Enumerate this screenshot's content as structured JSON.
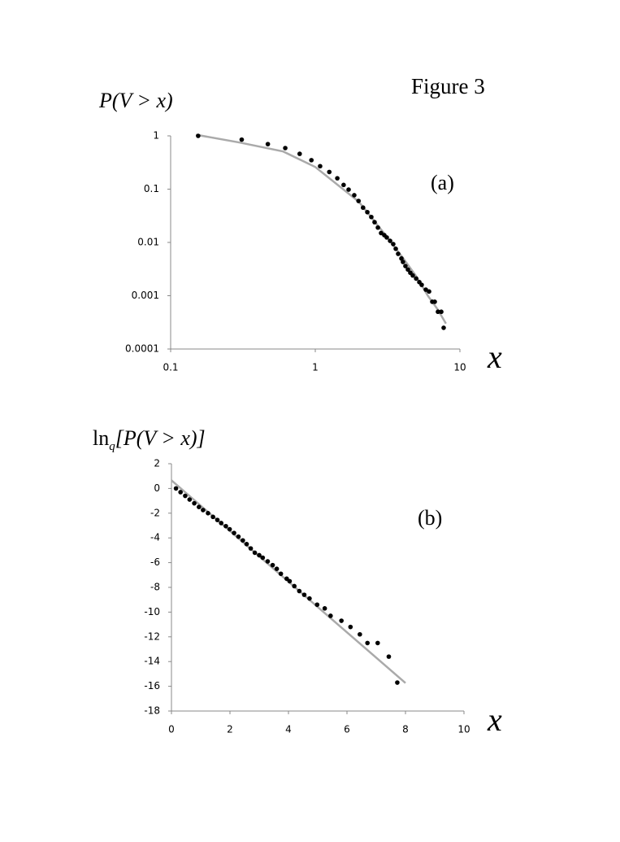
{
  "figure_title": "Figure 3",
  "chart_data": [
    {
      "type": "scatter",
      "annotation": "(a)",
      "ylabel": "P(V > x)",
      "xlabel": "x",
      "xscale": "log",
      "yscale": "log",
      "color": "#000000",
      "fit_color": "#aaaaaa",
      "xlim": [
        0.1,
        10
      ],
      "xticks": [
        0.1,
        1,
        10
      ],
      "ylim": [
        0.0001,
        1
      ],
      "yticks": [
        1,
        0.1,
        0.01,
        0.001,
        0.0001
      ],
      "x": [
        0.155,
        0.31,
        0.47,
        0.62,
        0.78,
        0.94,
        1.08,
        1.25,
        1.42,
        1.57,
        1.7,
        1.86,
        1.99,
        2.14,
        2.29,
        2.44,
        2.57,
        2.71,
        2.85,
        3.0,
        3.12,
        3.29,
        3.46,
        3.6,
        3.74,
        3.94,
        4.04,
        4.2,
        4.37,
        4.54,
        4.72,
        4.98,
        5.24,
        5.44,
        5.81,
        6.12,
        6.44,
        6.7,
        7.05,
        7.43,
        7.72
      ],
      "values": [
        1,
        0.85,
        0.7,
        0.59,
        0.46,
        0.35,
        0.27,
        0.21,
        0.16,
        0.12,
        0.098,
        0.077,
        0.06,
        0.045,
        0.037,
        0.03,
        0.024,
        0.019,
        0.015,
        0.0137,
        0.0124,
        0.0107,
        0.0093,
        0.0076,
        0.0061,
        0.005,
        0.0043,
        0.0036,
        0.0031,
        0.0027,
        0.0024,
        0.0021,
        0.0018,
        0.0016,
        0.0013,
        0.0012,
        0.00077,
        0.00077,
        0.0005,
        0.0005,
        0.00025
      ],
      "fit": {
        "x": [
          0.15,
          0.3,
          0.6,
          1,
          2,
          3,
          4,
          5,
          6,
          7,
          8
        ],
        "values": [
          1.05,
          0.75,
          0.51,
          0.26,
          0.058,
          0.0147,
          0.0053,
          0.0023,
          0.001,
          0.00056,
          0.0003
        ]
      }
    },
    {
      "type": "scatter",
      "annotation": "(b)",
      "ylabel_parts": [
        "ln",
        "q",
        "[P(V > x)]"
      ],
      "xlabel": "x",
      "xscale": "linear",
      "yscale": "linear",
      "color": "#000000",
      "fit_color": "#aaaaaa",
      "xlim": [
        0,
        10
      ],
      "xticks": [
        0,
        2,
        4,
        6,
        8,
        10
      ],
      "ylim": [
        -18,
        2
      ],
      "yticks": [
        2,
        0,
        -2,
        -4,
        -6,
        -8,
        -10,
        -12,
        -14,
        -16,
        -18
      ],
      "x": [
        0.155,
        0.31,
        0.47,
        0.62,
        0.78,
        0.94,
        1.08,
        1.25,
        1.42,
        1.57,
        1.7,
        1.86,
        1.99,
        2.14,
        2.29,
        2.44,
        2.57,
        2.71,
        2.85,
        3.0,
        3.12,
        3.29,
        3.46,
        3.6,
        3.74,
        3.94,
        4.04,
        4.2,
        4.37,
        4.54,
        4.72,
        4.98,
        5.24,
        5.44,
        5.81,
        6.12,
        6.44,
        6.7,
        7.05,
        7.43,
        7.72
      ],
      "values": [
        0,
        -0.3,
        -0.6,
        -0.9,
        -1.2,
        -1.5,
        -1.75,
        -2.0,
        -2.3,
        -2.55,
        -2.8,
        -3.05,
        -3.3,
        -3.6,
        -3.9,
        -4.2,
        -4.5,
        -4.85,
        -5.2,
        -5.4,
        -5.6,
        -5.9,
        -6.2,
        -6.5,
        -6.9,
        -7.3,
        -7.5,
        -7.9,
        -8.3,
        -8.6,
        -8.9,
        -9.4,
        -9.7,
        -10.3,
        -10.7,
        -11.2,
        -11.8,
        -12.5,
        -12.5,
        -13.6,
        -15.7
      ],
      "fit": {
        "x": [
          0,
          8
        ],
        "values": [
          0.66,
          -15.74
        ]
      }
    }
  ]
}
